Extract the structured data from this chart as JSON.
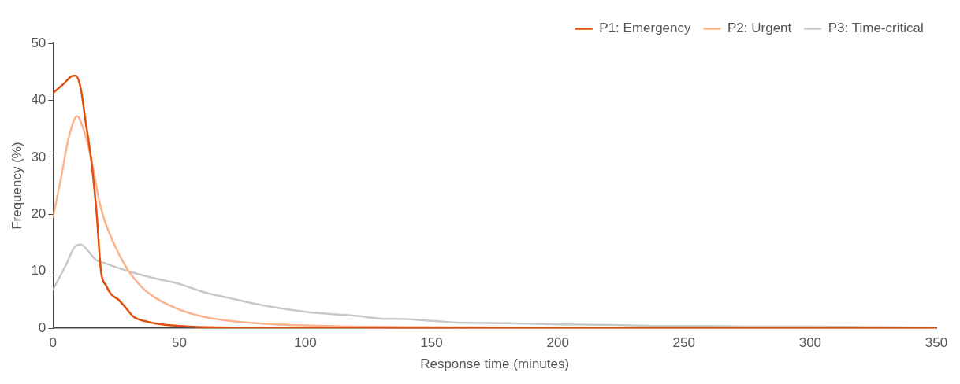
{
  "chart_data": {
    "type": "line",
    "xlabel": "Response time (minutes)",
    "ylabel": "Frequency (%)",
    "xlim": [
      0,
      350
    ],
    "xticks": [
      0,
      50,
      100,
      150,
      200,
      250,
      300,
      350
    ],
    "ylim": [
      0,
      50
    ],
    "yticks": [
      0,
      10,
      20,
      30,
      40,
      50
    ],
    "grid": false,
    "legend": "top right",
    "marker": "none",
    "line_style": "solid",
    "series": [
      {
        "name": "P1: Emergency",
        "color": "#e0500a",
        "x": [
          0,
          4,
          8,
          9,
          11,
          13,
          15,
          17.3,
          19,
          21,
          23,
          26,
          29,
          32,
          36,
          40,
          50,
          60,
          80,
          120,
          200,
          350
        ],
        "values": [
          41.3,
          42.8,
          44.3,
          44.3,
          42,
          36,
          30,
          20,
          10,
          7.5,
          6,
          5,
          3.5,
          2,
          1.3,
          0.9,
          0.4,
          0.2,
          0.1,
          0.1,
          0,
          0
        ]
      },
      {
        "name": "P2: Urgent",
        "color": "#fbb48e",
        "x": [
          0,
          3,
          6,
          9.5,
          12,
          15,
          18,
          20,
          25,
          30,
          35,
          40,
          50,
          60,
          70,
          80,
          100,
          120,
          150,
          200,
          250,
          350
        ],
        "values": [
          19.5,
          26,
          33,
          37.2,
          35,
          30,
          23,
          19.5,
          14,
          10,
          7.3,
          5.5,
          3.3,
          2,
          1.3,
          0.9,
          0.5,
          0.3,
          0.2,
          0.1,
          0.1,
          0
        ]
      },
      {
        "name": "P3: Time-critical",
        "color": "#c8c8c8",
        "x": [
          0,
          5,
          9,
          11,
          14,
          17,
          20,
          30,
          40,
          50,
          60,
          70,
          80,
          90,
          100,
          110,
          120,
          130,
          140,
          150,
          160,
          180,
          200,
          220,
          240,
          260,
          280,
          300,
          350
        ],
        "values": [
          6.8,
          11,
          14.5,
          14.7,
          13.5,
          12,
          11.5,
          10,
          8.8,
          7.8,
          6.3,
          5.3,
          4.3,
          3.5,
          2.9,
          2.5,
          2.2,
          1.7,
          1.6,
          1.3,
          1,
          0.9,
          0.7,
          0.6,
          0.4,
          0.4,
          0.3,
          0.3,
          0.1
        ]
      }
    ]
  }
}
